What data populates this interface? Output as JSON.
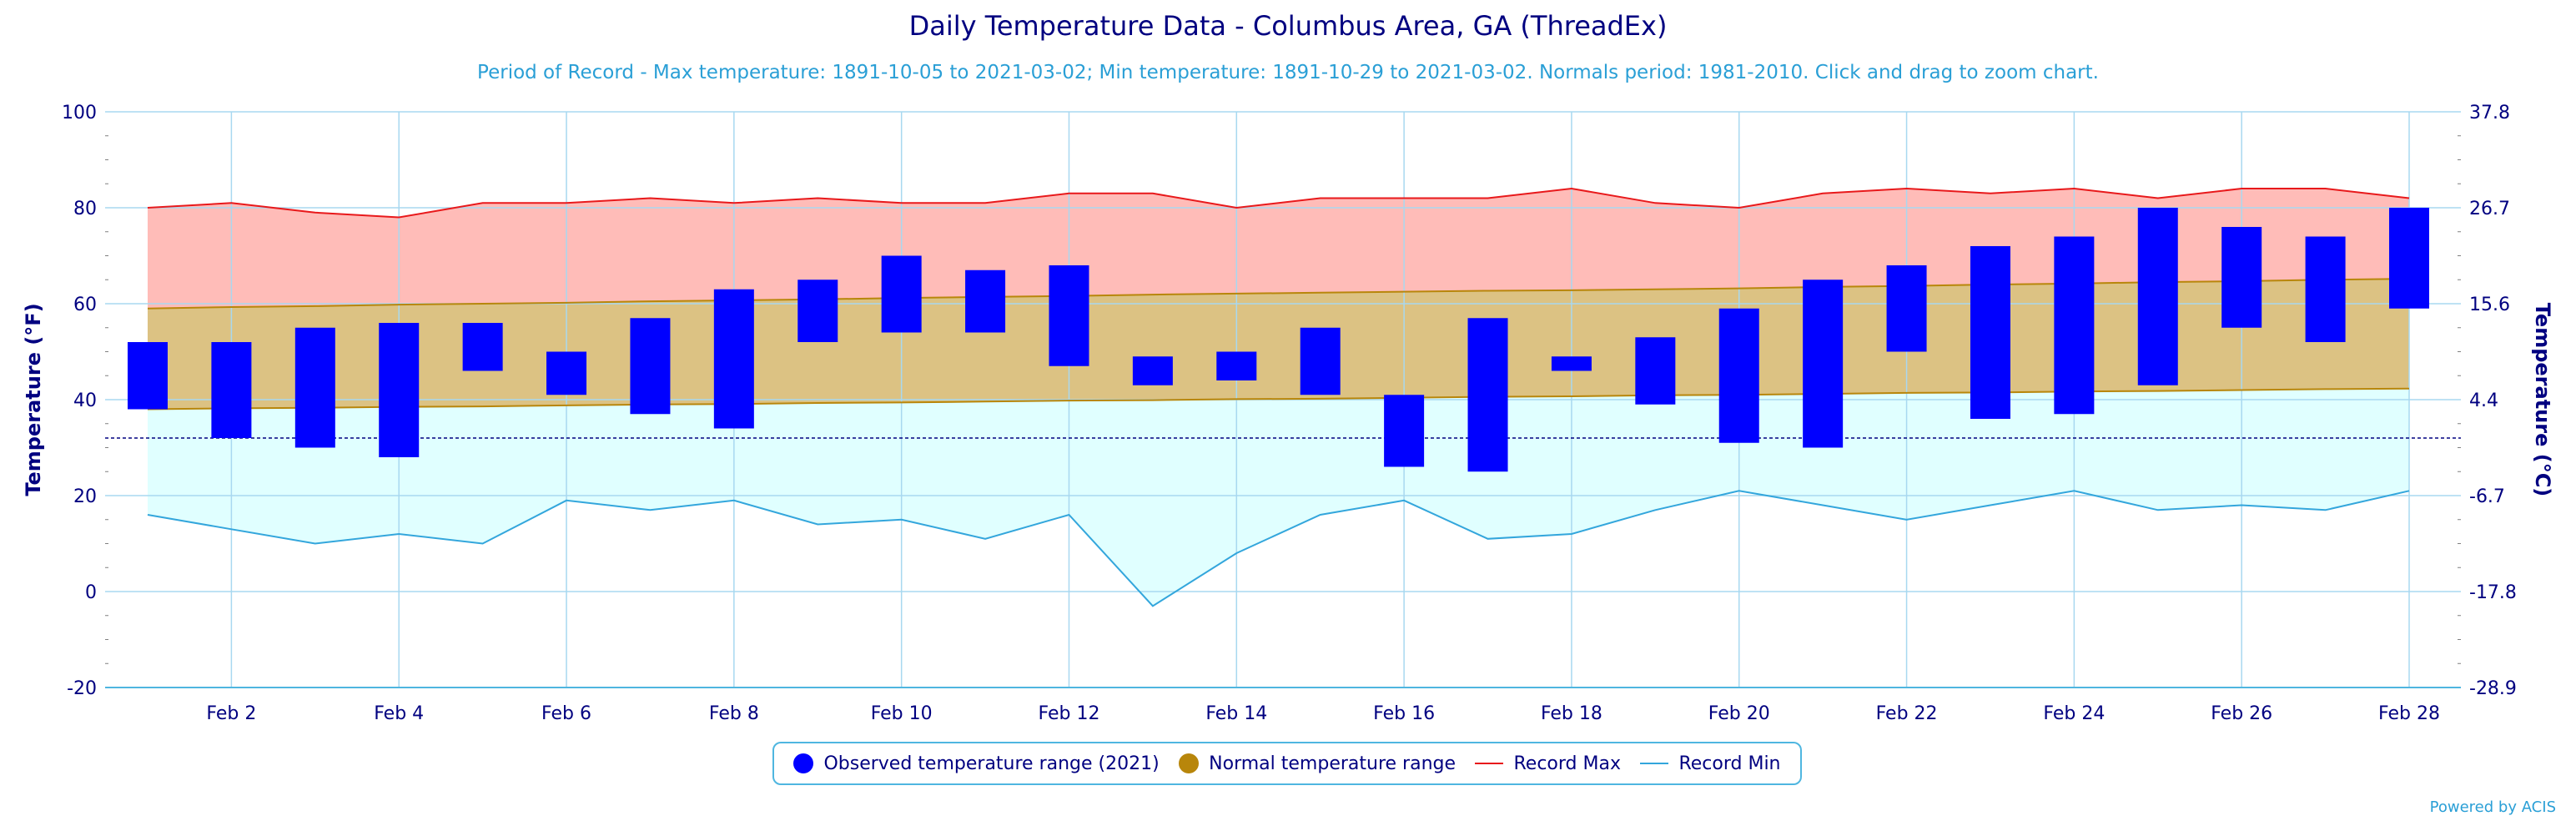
{
  "title": "Daily Temperature Data - Columbus Area, GA (ThreadEx)",
  "subtitle": "Period of Record - Max temperature: 1891-10-05 to 2021-03-02; Min temperature: 1891-10-29 to 2021-03-02. Normals period: 1981-2010. Click and drag to zoom chart.",
  "credits": "Powered by ACIS",
  "colors": {
    "title": "#000080",
    "observed": "#0000ff",
    "normal_band": "#dcc283",
    "normal_line": "#b8860b",
    "normal_legend": "#b8860b",
    "record_max_line": "#e8191b",
    "record_max_fill": "#ffbcb8",
    "record_min_line": "#33a6dc",
    "record_min_fill": "#e0ffff",
    "grid": "#a8d8f0",
    "freezing_line": "#000080"
  },
  "legend": [
    {
      "label": "Observed temperature range (2021)",
      "symbol": "dot",
      "color": "#0000ff"
    },
    {
      "label": "Normal temperature range",
      "symbol": "dot",
      "color": "#b8860b"
    },
    {
      "label": "Record Max",
      "symbol": "line",
      "color": "#e8191b"
    },
    {
      "label": "Record Min",
      "symbol": "line",
      "color": "#33a6dc"
    }
  ],
  "chart_data": {
    "type": "bar",
    "ylabel": "Temperature (°F)",
    "ylabel_right": "Temperature (°C)",
    "ylim": [
      -20,
      100
    ],
    "yticks": [
      -20,
      0,
      20,
      40,
      60,
      80,
      100
    ],
    "yticks_right": [
      "-28.9",
      "-17.8",
      "-6.7",
      "4.4",
      "15.6",
      "26.7",
      "37.8"
    ],
    "freezing_line": 32,
    "xlim": [
      1,
      28
    ],
    "x_tick_days": [
      2,
      4,
      6,
      8,
      10,
      12,
      14,
      16,
      18,
      20,
      22,
      24,
      26,
      28
    ],
    "x_tick_labels": [
      "Feb 2",
      "Feb 4",
      "Feb 6",
      "Feb 8",
      "Feb 10",
      "Feb 12",
      "Feb 14",
      "Feb 16",
      "Feb 18",
      "Feb 20",
      "Feb 22",
      "Feb 24",
      "Feb 26",
      "Feb 28"
    ],
    "days": [
      1,
      2,
      3,
      4,
      5,
      6,
      7,
      8,
      9,
      10,
      11,
      12,
      13,
      14,
      15,
      16,
      17,
      18,
      19,
      20,
      21,
      22,
      23,
      24,
      25,
      26,
      27,
      28
    ],
    "series": [
      {
        "name": "Observed temperature range (2021)",
        "low": [
          38,
          32,
          30,
          28,
          46,
          41,
          37,
          34,
          52,
          54,
          54,
          47,
          43,
          44,
          41,
          26,
          25,
          46,
          39,
          31,
          30,
          50,
          36,
          37,
          43,
          55,
          52,
          59
        ],
        "high": [
          52,
          52,
          55,
          56,
          56,
          50,
          57,
          63,
          65,
          70,
          67,
          68,
          49,
          50,
          55,
          41,
          57,
          49,
          53,
          59,
          65,
          68,
          72,
          74,
          80,
          76,
          74,
          80
        ]
      },
      {
        "name": "Normal temperature range",
        "low": [
          38,
          38.2,
          38.3,
          38.5,
          38.6,
          38.8,
          39,
          39.1,
          39.3,
          39.4,
          39.6,
          39.8,
          39.9,
          40.1,
          40.2,
          40.4,
          40.6,
          40.7,
          40.9,
          41,
          41.2,
          41.4,
          41.5,
          41.7,
          41.8,
          42,
          42.2,
          42.3
        ],
        "high": [
          59,
          59.3,
          59.5,
          59.8,
          60,
          60.2,
          60.5,
          60.7,
          60.9,
          61.2,
          61.4,
          61.6,
          61.9,
          62.1,
          62.3,
          62.5,
          62.7,
          62.8,
          63,
          63.2,
          63.5,
          63.7,
          64,
          64.2,
          64.5,
          64.7,
          65,
          65.2
        ]
      },
      {
        "name": "Record Max",
        "values": [
          80,
          81,
          79,
          78,
          81,
          81,
          82,
          81,
          82,
          81,
          81,
          83,
          83,
          80,
          82,
          82,
          82,
          84,
          81,
          80,
          83,
          84,
          83,
          84,
          82,
          84,
          84,
          82
        ]
      },
      {
        "name": "Record Min",
        "values": [
          16,
          13,
          10,
          12,
          10,
          19,
          17,
          19,
          14,
          15,
          11,
          16,
          -3,
          8,
          16,
          19,
          11,
          12,
          17,
          21,
          18,
          15,
          18,
          21,
          17,
          18,
          17,
          21
        ]
      }
    ],
    "legend_position": "bottom-center",
    "grid": true
  }
}
